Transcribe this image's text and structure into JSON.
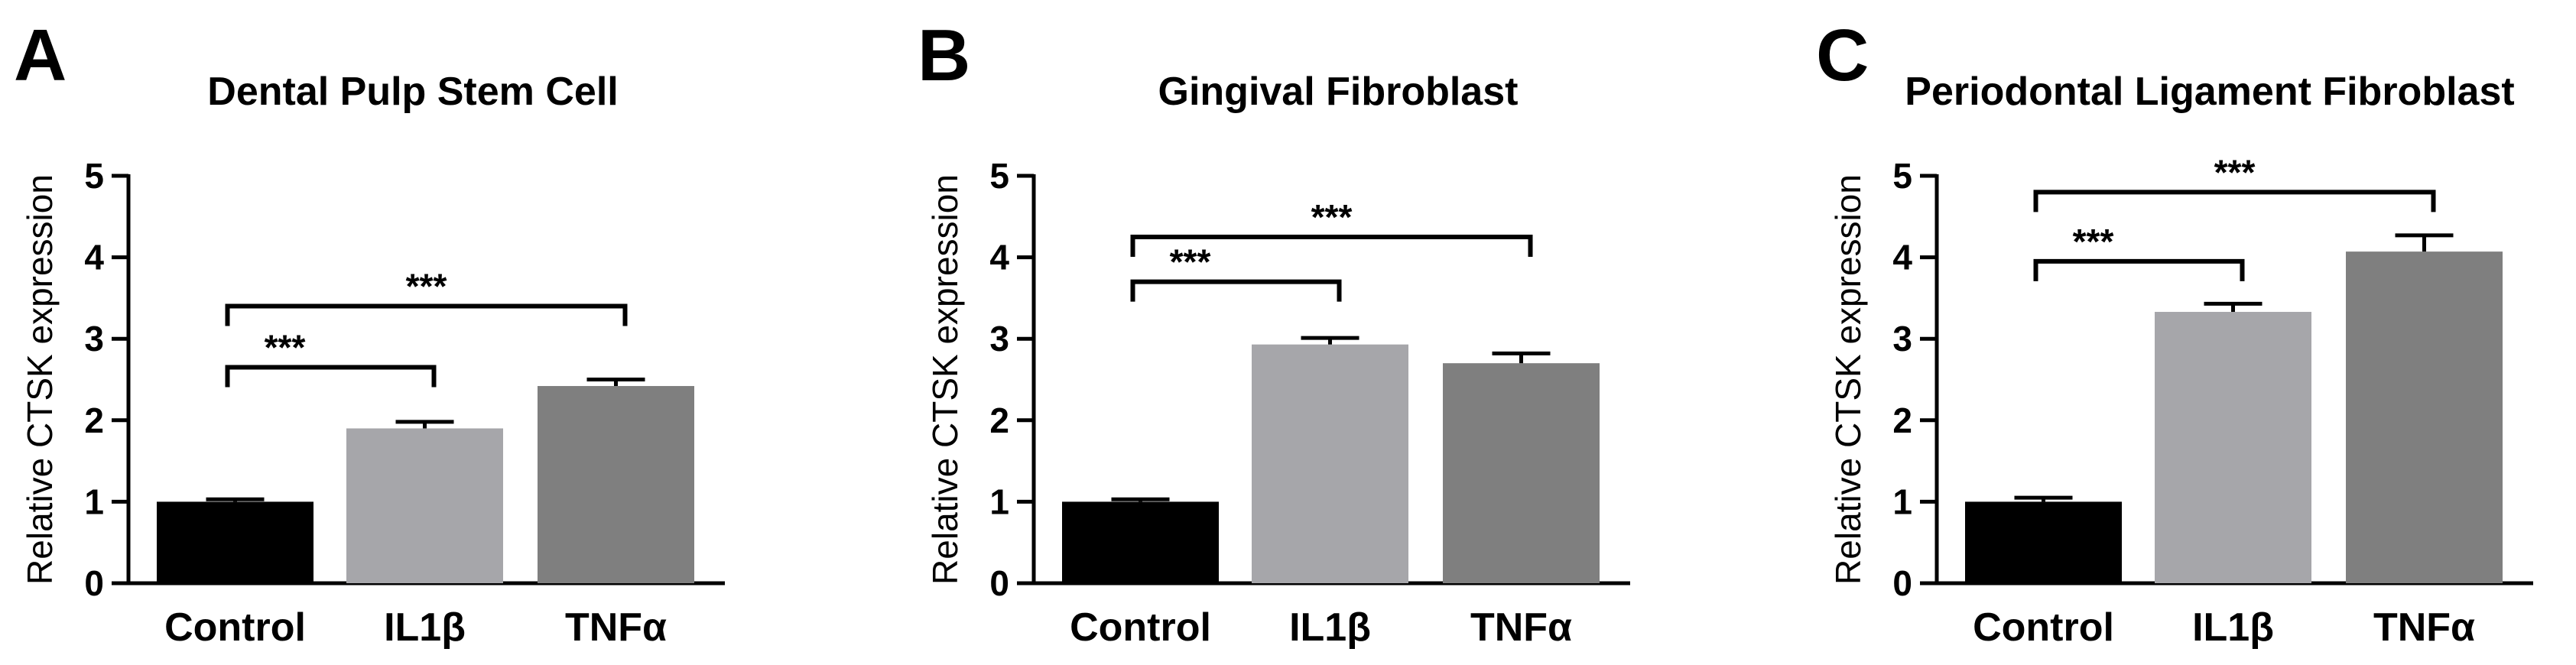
{
  "chart_data": [
    {
      "type": "bar",
      "panel": "A",
      "title": "Dental Pulp Stem Cell",
      "ylabel": "Relative CTSK expression",
      "ylim": [
        0,
        5
      ],
      "yticks": [
        "0",
        "1",
        "2",
        "3",
        "4",
        "5"
      ],
      "categories": [
        "Control",
        "IL1β",
        "TNFα"
      ],
      "values": [
        1.0,
        1.9,
        2.42
      ],
      "errors": [
        0.03,
        0.08,
        0.08
      ],
      "colors": [
        "#000000",
        "#a6a6aa",
        "#7f7f7f"
      ],
      "significance": [
        {
          "from": "Control",
          "to": "IL1β",
          "label": "***",
          "y": 2.65
        },
        {
          "from": "Control",
          "to": "TNFα",
          "label": "***",
          "y": 3.4
        }
      ]
    },
    {
      "type": "bar",
      "panel": "B",
      "title": "Gingival Fibroblast",
      "ylabel": "Relative CTSK expression",
      "ylim": [
        0,
        5
      ],
      "yticks": [
        "0",
        "1",
        "2",
        "3",
        "4",
        "5"
      ],
      "categories": [
        "Control",
        "IL1β",
        "TNFα"
      ],
      "values": [
        1.0,
        2.93,
        2.7
      ],
      "errors": [
        0.03,
        0.08,
        0.12
      ],
      "colors": [
        "#000000",
        "#a6a6aa",
        "#7f7f7f"
      ],
      "significance": [
        {
          "from": "Control",
          "to": "IL1β",
          "label": "***",
          "y": 3.7
        },
        {
          "from": "Control",
          "to": "TNFα",
          "label": "***",
          "y": 4.25
        }
      ]
    },
    {
      "type": "bar",
      "panel": "C",
      "title": "Periodontal Ligament Fibroblast",
      "ylabel": "Relative CTSK expression",
      "ylim": [
        0,
        5
      ],
      "yticks": [
        "0",
        "1",
        "2",
        "3",
        "4",
        "5"
      ],
      "categories": [
        "Control",
        "IL1β",
        "TNFα"
      ],
      "values": [
        1.0,
        3.33,
        4.07
      ],
      "errors": [
        0.05,
        0.1,
        0.2
      ],
      "colors": [
        "#000000",
        "#a6a6aa",
        "#7f7f7f"
      ],
      "significance": [
        {
          "from": "Control",
          "to": "IL1β",
          "label": "***",
          "y": 3.95
        },
        {
          "from": "Control",
          "to": "TNFα",
          "label": "***",
          "y": 4.8
        }
      ]
    }
  ]
}
